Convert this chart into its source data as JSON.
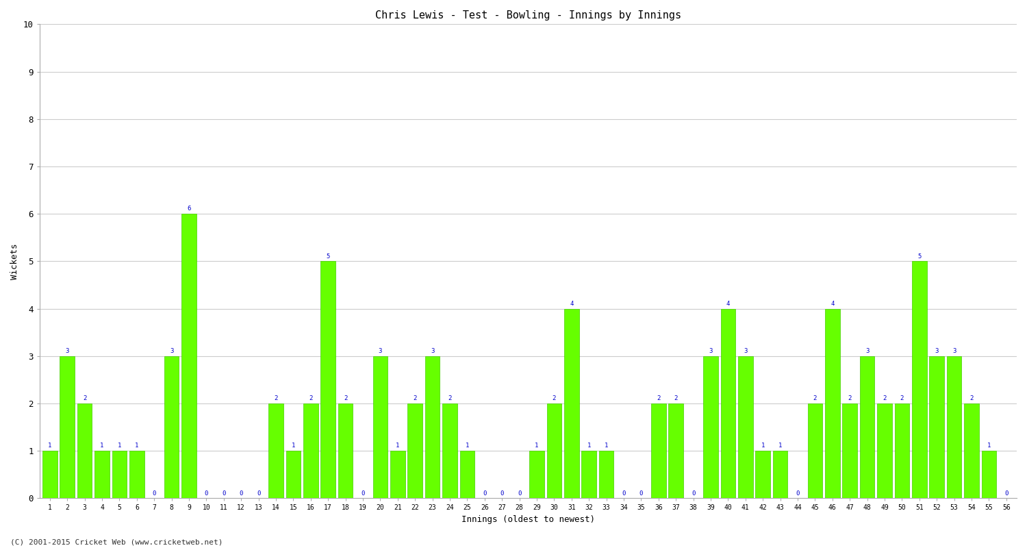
{
  "title": "Chris Lewis - Test - Bowling - Innings by Innings",
  "xlabel": "Innings (oldest to newest)",
  "ylabel": "Wickets",
  "bar_color": "#66ff00",
  "bar_edge_color": "#44cc00",
  "label_color": "#0000cc",
  "ylim": [
    0,
    10
  ],
  "yticks": [
    0,
    1,
    2,
    3,
    4,
    5,
    6,
    7,
    8,
    9,
    10
  ],
  "background_color": "#ffffff",
  "grid_color": "#cccccc",
  "footer": "(C) 2001-2015 Cricket Web (www.cricketweb.net)",
  "innings": [
    1,
    2,
    3,
    4,
    5,
    6,
    7,
    8,
    9,
    10,
    11,
    12,
    13,
    14,
    15,
    16,
    17,
    18,
    19,
    20,
    21,
    22,
    23,
    24,
    25,
    26,
    27,
    28,
    29,
    30,
    31,
    32,
    33,
    34,
    35,
    36,
    37,
    38,
    39,
    40,
    41,
    42,
    43,
    44,
    45,
    46,
    47,
    48,
    49,
    50,
    51,
    52,
    53,
    54,
    55,
    56
  ],
  "wickets": [
    1,
    3,
    2,
    1,
    1,
    1,
    0,
    3,
    6,
    0,
    0,
    0,
    0,
    2,
    1,
    2,
    5,
    2,
    0,
    3,
    1,
    2,
    3,
    2,
    1,
    0,
    0,
    0,
    1,
    2,
    4,
    1,
    1,
    0,
    0,
    2,
    2,
    0,
    3,
    4,
    3,
    1,
    1,
    0,
    2,
    4,
    2,
    3,
    2,
    2,
    5,
    3,
    3,
    2,
    1,
    0
  ]
}
